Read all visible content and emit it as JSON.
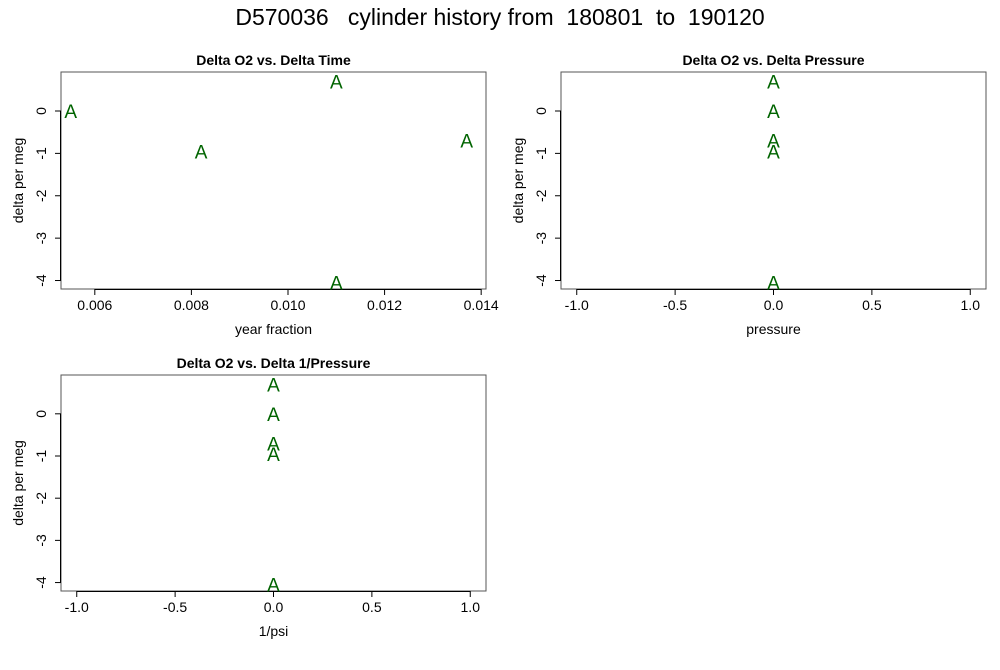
{
  "title": "D570036   cylinder history from  180801  to  190120",
  "point_symbol": "A",
  "point_color": "#006400",
  "chart_data": [
    {
      "type": "scatter",
      "title": "Delta O2 vs. Delta Time",
      "xlabel": "year fraction",
      "ylabel": "delta per meg",
      "xlim": [
        0.0053,
        0.0141
      ],
      "ylim": [
        -4.2,
        0.92
      ],
      "xticks": [
        0.006,
        0.008,
        0.01,
        0.012,
        0.014
      ],
      "xtick_labels": [
        "0.006",
        "0.008",
        "0.010",
        "0.012",
        "0.014"
      ],
      "yticks": [
        0,
        -1,
        -2,
        -3,
        -4
      ],
      "ytick_labels": [
        "0",
        "-1",
        "-2",
        "-3",
        "-4"
      ],
      "points": [
        {
          "x": 0.0055,
          "y": 0.0
        },
        {
          "x": 0.0082,
          "y": -0.95
        },
        {
          "x": 0.011,
          "y": 0.7
        },
        {
          "x": 0.011,
          "y": -4.05
        },
        {
          "x": 0.0137,
          "y": -0.7
        }
      ]
    },
    {
      "type": "scatter",
      "title": "Delta O2 vs. Delta Pressure",
      "xlabel": "pressure",
      "ylabel": "delta per meg",
      "xlim": [
        -1.08,
        1.08
      ],
      "ylim": [
        -4.2,
        0.92
      ],
      "xticks": [
        -1.0,
        -0.5,
        0.0,
        0.5,
        1.0
      ],
      "xtick_labels": [
        "-1.0",
        "-0.5",
        "0.0",
        "0.5",
        "1.0"
      ],
      "yticks": [
        0,
        -1,
        -2,
        -3,
        -4
      ],
      "ytick_labels": [
        "0",
        "-1",
        "-2",
        "-3",
        "-4"
      ],
      "points": [
        {
          "x": 0.0,
          "y": 0.7
        },
        {
          "x": 0.0,
          "y": 0.0
        },
        {
          "x": 0.0,
          "y": -0.7
        },
        {
          "x": 0.0,
          "y": -0.95
        },
        {
          "x": 0.0,
          "y": -4.05
        }
      ]
    },
    {
      "type": "scatter",
      "title": "Delta O2 vs. Delta 1/Pressure",
      "xlabel": "1/psi",
      "ylabel": "delta per meg",
      "xlim": [
        -1.08,
        1.08
      ],
      "ylim": [
        -4.2,
        0.92
      ],
      "xticks": [
        -1.0,
        -0.5,
        0.0,
        0.5,
        1.0
      ],
      "xtick_labels": [
        "-1.0",
        "-0.5",
        "0.0",
        "0.5",
        "1.0"
      ],
      "yticks": [
        0,
        -1,
        -2,
        -3,
        -4
      ],
      "ytick_labels": [
        "0",
        "-1",
        "-2",
        "-3",
        "-4"
      ],
      "points": [
        {
          "x": 0.0,
          "y": 0.7
        },
        {
          "x": 0.0,
          "y": 0.0
        },
        {
          "x": 0.0,
          "y": -0.7
        },
        {
          "x": 0.0,
          "y": -0.95
        },
        {
          "x": 0.0,
          "y": -4.05
        }
      ]
    }
  ]
}
